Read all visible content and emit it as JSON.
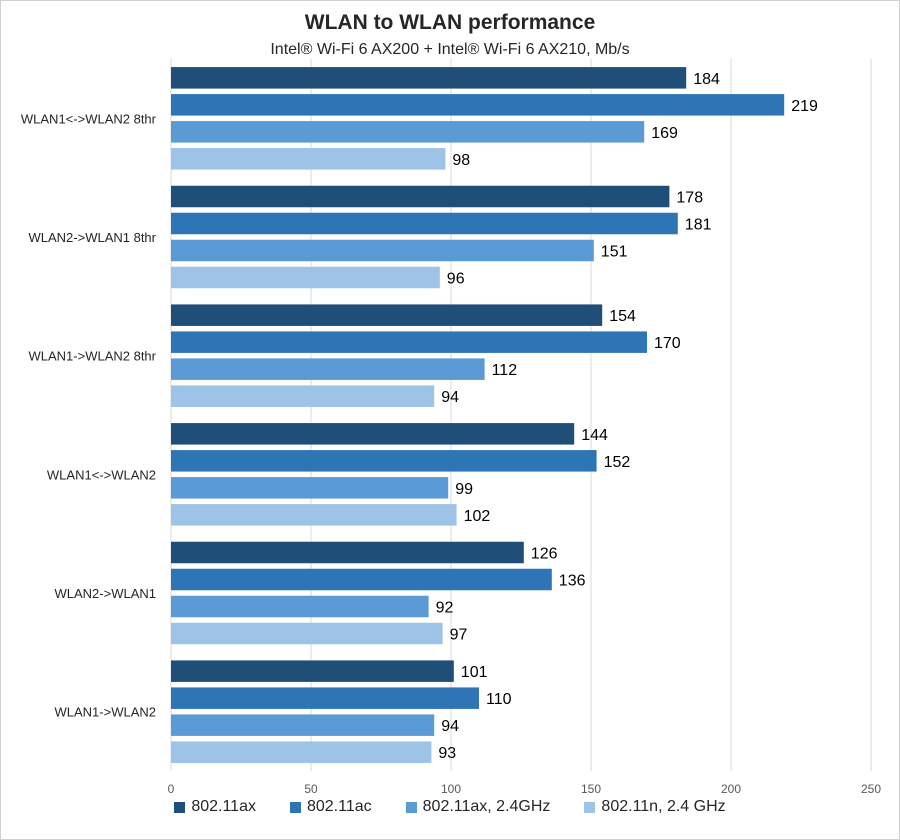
{
  "colors": {
    "series": [
      "#1f4e79",
      "#2e75b6",
      "#5b9bd5",
      "#9dc3e6"
    ],
    "grid": "#d9d9d9",
    "text": "#262626",
    "axis_text": "#595959"
  },
  "chart_data": {
    "type": "bar",
    "orientation": "horizontal",
    "title": "WLAN to WLAN performance",
    "subtitle": "Intel® Wi-Fi 6 AX200 + Intel® Wi-Fi 6 AX210, Mb/s",
    "categories": [
      "WLAN1<->WLAN2 8thr",
      "WLAN2->WLAN1 8thr",
      "WLAN1->WLAN2 8thr",
      "WLAN1<->WLAN2",
      "WLAN2->WLAN1",
      "WLAN1->WLAN2"
    ],
    "series": [
      {
        "name": "802.11ax",
        "values": [
          184,
          178,
          154,
          144,
          126,
          101
        ]
      },
      {
        "name": "802.11ac",
        "values": [
          219,
          181,
          170,
          152,
          136,
          110
        ]
      },
      {
        "name": "802.11ax, 2.4GHz",
        "values": [
          169,
          151,
          112,
          99,
          92,
          94
        ]
      },
      {
        "name": "802.11n, 2.4 GHz",
        "values": [
          98,
          96,
          94,
          102,
          97,
          93
        ]
      }
    ],
    "xlim": [
      0,
      250
    ],
    "xticks": [
      0,
      50,
      100,
      150,
      200,
      250
    ],
    "grid": true,
    "data_labels": true,
    "legend_position": "bottom"
  }
}
